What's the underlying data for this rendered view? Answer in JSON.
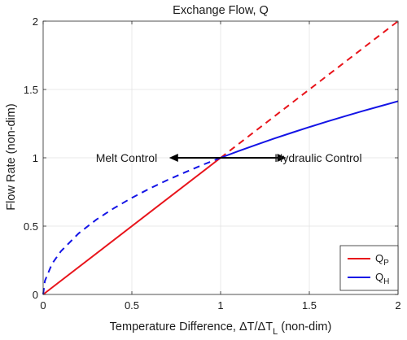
{
  "chart_data": {
    "type": "line",
    "title": "Exchange Flow, Q",
    "xlabel": {
      "main": "Temperature Difference, ",
      "delta1": "ΔT/ΔT",
      "delta_sub": "L",
      "tail": " (non-dim)"
    },
    "ylabel": "Flow Rate (non-dim)",
    "xlim": [
      0,
      2
    ],
    "ylim": [
      0,
      2
    ],
    "x_ticks": [
      0,
      0.5,
      1,
      1.5,
      2
    ],
    "y_ticks": [
      0,
      0.5,
      1,
      1.5,
      2
    ],
    "x_tick_labels": [
      "0",
      "0.5",
      "1",
      "1.5",
      "2"
    ],
    "y_tick_labels": [
      "0",
      "0.5",
      "1",
      "1.5",
      "2"
    ],
    "grid": true,
    "legend_position": "bottom-right",
    "series": [
      {
        "name": "Q",
        "name_sub": "P",
        "color": "#e8141b",
        "function": "Q = ΔT",
        "segments": [
          {
            "style": "solid",
            "x": [
              0,
              1
            ],
            "y": [
              0,
              1
            ]
          },
          {
            "style": "dashed",
            "x": [
              1,
              2
            ],
            "y": [
              1,
              2
            ]
          }
        ]
      },
      {
        "name": "Q",
        "name_sub": "H",
        "color": "#1414e6",
        "function": "Q = sqrt(ΔT)",
        "segments": [
          {
            "style": "dashed",
            "x": [
              0,
              0.01,
              0.05,
              0.1,
              0.2,
              0.3,
              0.4,
              0.5,
              0.6,
              0.7,
              0.8,
              0.9,
              1.0
            ],
            "y": [
              0,
              0.1,
              0.224,
              0.316,
              0.447,
              0.548,
              0.632,
              0.707,
              0.775,
              0.837,
              0.894,
              0.949,
              1.0
            ]
          },
          {
            "style": "solid",
            "x": [
              1.0,
              1.1,
              1.2,
              1.3,
              1.4,
              1.5,
              1.6,
              1.7,
              1.8,
              1.9,
              2.0
            ],
            "y": [
              1.0,
              1.049,
              1.095,
              1.14,
              1.183,
              1.225,
              1.265,
              1.304,
              1.342,
              1.378,
              1.414
            ]
          }
        ]
      }
    ],
    "annotations": [
      {
        "text": "Melt Control",
        "x": 0.47,
        "y": 1.0
      },
      {
        "text": "Hydraulic Control",
        "x": 1.55,
        "y": 1.0
      }
    ],
    "arrow": {
      "x_from": 0.71,
      "x_to": 1.37,
      "y": 1.0,
      "color": "#000000"
    }
  }
}
